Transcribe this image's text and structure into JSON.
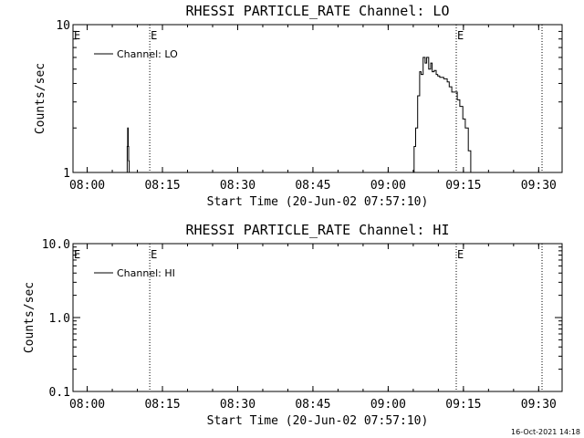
{
  "stamp": "16-Oct-2021 14:18",
  "chart_data": [
    {
      "type": "line",
      "title": "RHESSI PARTICLE_RATE Channel: LO",
      "xlabel": "Start Time (20-Jun-02 07:57:10)",
      "ylabel": "Counts/sec",
      "yscale": "log",
      "xlim": [
        0,
        97.5
      ],
      "ylim": [
        1,
        10
      ],
      "xtick_labels": [
        "08:00",
        "08:15",
        "08:30",
        "08:45",
        "09:00",
        "09:15",
        "09:30"
      ],
      "xtick_values": [
        2.83,
        17.83,
        32.83,
        47.83,
        62.83,
        77.83,
        92.83
      ],
      "ytick_labels": [
        "1",
        "10"
      ],
      "ytick_values": [
        1,
        10
      ],
      "markers": [
        {
          "x": 15.3,
          "label": "E"
        },
        {
          "x": 76.4,
          "label": "E"
        },
        {
          "x": 93.5,
          "label": ""
        }
      ],
      "legend": "Channel: LO",
      "series": [
        {
          "name": "Channel: LO",
          "x": [
            10.7,
            10.8,
            10.9,
            11.0,
            11.1,
            11.2,
            67.8,
            68.0,
            68.3,
            68.7,
            69.1,
            69.4,
            69.8,
            70.2,
            70.5,
            70.9,
            71.3,
            71.6,
            72.0,
            72.4,
            72.7,
            73.1,
            73.5,
            73.9,
            74.2,
            74.6,
            75.0,
            75.5,
            76.1,
            76.6,
            77.1,
            77.7,
            78.2,
            78.8,
            79.3
          ],
          "y": [
            1,
            1.5,
            2.0,
            1.5,
            1.2,
            1,
            1,
            1.5,
            2.0,
            3.3,
            4.8,
            4.6,
            6.0,
            5.5,
            6.0,
            5.0,
            5.5,
            4.8,
            4.9,
            4.6,
            4.5,
            4.4,
            4.4,
            4.3,
            4.3,
            4.1,
            3.8,
            3.5,
            3.5,
            3.1,
            2.8,
            2.3,
            2.0,
            1.4,
            1
          ]
        }
      ]
    },
    {
      "type": "line",
      "title": "RHESSI PARTICLE_RATE Channel: HI",
      "xlabel": "Start Time (20-Jun-02 07:57:10)",
      "ylabel": "Counts/sec",
      "yscale": "log",
      "xlim": [
        0,
        97.5
      ],
      "ylim": [
        0.1,
        10
      ],
      "xtick_labels": [
        "08:00",
        "08:15",
        "08:30",
        "08:45",
        "09:00",
        "09:15",
        "09:30"
      ],
      "xtick_values": [
        2.83,
        17.83,
        32.83,
        47.83,
        62.83,
        77.83,
        92.83
      ],
      "ytick_labels": [
        "0.1",
        "1.0",
        "10.0"
      ],
      "ytick_values": [
        0.1,
        1,
        10
      ],
      "markers": [
        {
          "x": 15.3,
          "label": "E"
        },
        {
          "x": 76.4,
          "label": "E"
        },
        {
          "x": 93.5,
          "label": ""
        }
      ],
      "legend": "Channel: HI",
      "series": [
        {
          "name": "Channel: HI",
          "x": [],
          "y": []
        }
      ]
    }
  ]
}
